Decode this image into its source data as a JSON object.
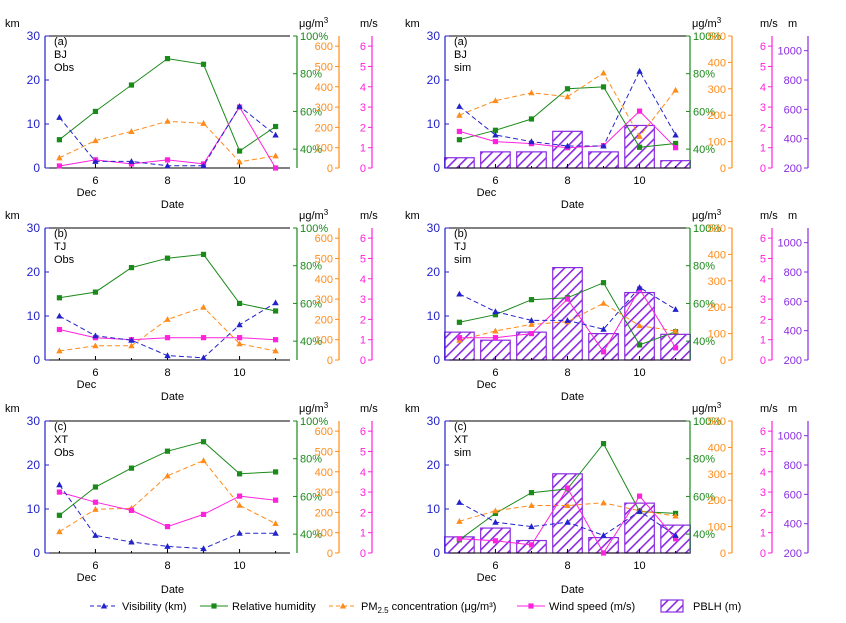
{
  "colors": {
    "visibility": "#2222cc",
    "rh": "#1a8a1a",
    "pm": "#ff8c1a",
    "wind": "#ff22dd",
    "pblh": "#8a2be2",
    "axis": "#000000"
  },
  "chart_data": [
    {
      "type": "line",
      "panel_label": "(a)",
      "site": "BJ",
      "source": "Obs",
      "xlabel": "Date",
      "x_month_label": "Dec",
      "x_ticks": [
        6,
        8,
        10
      ],
      "xlim": [
        4.6,
        11.4
      ],
      "x": [
        5,
        6,
        7,
        8,
        9,
        10,
        11
      ],
      "axes": {
        "visibility": {
          "unit": "km",
          "ylim": [
            0,
            30
          ],
          "ticks": [
            0,
            10,
            20,
            30
          ]
        },
        "rh": {
          "unit": "",
          "ylim": [
            30,
            100
          ],
          "ticks": [
            "40%",
            "60%",
            "80%",
            "100%"
          ]
        },
        "pm": {
          "unit": "μg/m³",
          "ylim": [
            0,
            650
          ],
          "ticks": [
            0,
            100,
            200,
            300,
            400,
            500,
            600
          ]
        },
        "wind": {
          "unit": "m/s",
          "ylim": [
            0,
            6.5
          ],
          "ticks": [
            0,
            1,
            2,
            3,
            4,
            5,
            6
          ]
        }
      },
      "series": [
        {
          "key": "visibility",
          "name": "Visibility (km)",
          "values": [
            11.5,
            1.5,
            1.5,
            0.5,
            0.5,
            14,
            7.5
          ]
        },
        {
          "key": "rh",
          "name": "Relative humidity",
          "values": [
            45,
            60,
            74,
            88,
            85,
            39,
            52
          ]
        },
        {
          "key": "pm",
          "name": "PM2.5 concentration",
          "values": [
            50,
            135,
            180,
            230,
            220,
            30,
            60
          ]
        },
        {
          "key": "wind",
          "name": "Wind speed",
          "values": [
            0.1,
            0.4,
            0.2,
            0.4,
            0.2,
            3.0,
            0
          ]
        }
      ]
    },
    {
      "type": "line",
      "panel_label": "(a)",
      "site": "BJ",
      "source": "sim",
      "xlabel": "Date",
      "x_month_label": "Dec",
      "x_ticks": [
        6,
        8,
        10
      ],
      "xlim": [
        4.6,
        11.4
      ],
      "x": [
        5,
        6,
        7,
        8,
        9,
        10,
        11
      ],
      "axes": {
        "visibility": {
          "unit": "km",
          "ylim": [
            0,
            30
          ],
          "ticks": [
            0,
            10,
            20,
            30
          ]
        },
        "rh": {
          "unit": "",
          "ylim": [
            30,
            100
          ],
          "ticks": [
            "40%",
            "60%",
            "80%",
            "100%"
          ]
        },
        "pm": {
          "unit": "μg/m³",
          "ylim": [
            0,
            500
          ],
          "ticks": [
            0,
            100,
            200,
            300,
            400,
            500
          ]
        },
        "wind": {
          "unit": "m/s",
          "ylim": [
            0,
            6.5
          ],
          "ticks": [
            0,
            1,
            2,
            3,
            4,
            5,
            6
          ]
        },
        "pblh": {
          "unit": "m",
          "ylim": [
            200,
            1100
          ],
          "ticks": [
            200,
            400,
            600,
            800,
            1000
          ]
        }
      },
      "series": [
        {
          "key": "visibility",
          "name": "Visibility (km)",
          "values": [
            14,
            7.5,
            6,
            5,
            5,
            22,
            7.5
          ]
        },
        {
          "key": "rh",
          "name": "Relative humidity",
          "values": [
            45,
            50,
            56,
            72,
            73,
            41,
            43
          ]
        },
        {
          "key": "pm",
          "name": "PM2.5 concentration",
          "values": [
            200,
            255,
            285,
            270,
            360,
            120,
            295
          ]
        },
        {
          "key": "wind",
          "name": "Wind speed",
          "values": [
            1.8,
            1.3,
            1.2,
            1.0,
            1.1,
            2.8,
            1.0
          ]
        },
        {
          "key": "pblh",
          "name": "PBLH (m)",
          "values": [
            270,
            310,
            310,
            450,
            310,
            490,
            250
          ]
        }
      ]
    },
    {
      "type": "line",
      "panel_label": "(b)",
      "site": "TJ",
      "source": "Obs",
      "xlabel": "Date",
      "x_month_label": "Dec",
      "x_ticks": [
        6,
        8,
        10
      ],
      "xlim": [
        4.6,
        11.4
      ],
      "x": [
        5,
        6,
        7,
        8,
        9,
        10,
        11
      ],
      "axes": {
        "visibility": {
          "unit": "km",
          "ylim": [
            0,
            30
          ],
          "ticks": [
            0,
            10,
            20,
            30
          ]
        },
        "rh": {
          "unit": "",
          "ylim": [
            30,
            100
          ],
          "ticks": [
            "40%",
            "60%",
            "80%",
            "100%"
          ]
        },
        "pm": {
          "unit": "μg/m³",
          "ylim": [
            0,
            650
          ],
          "ticks": [
            0,
            100,
            200,
            300,
            400,
            500,
            600
          ]
        },
        "wind": {
          "unit": "m/s",
          "ylim": [
            0,
            6.5
          ],
          "ticks": [
            0,
            1,
            2,
            3,
            4,
            5,
            6
          ]
        }
      },
      "series": [
        {
          "key": "visibility",
          "name": "Visibility (km)",
          "values": [
            10,
            5.5,
            4.5,
            1,
            0.5,
            8,
            13
          ]
        },
        {
          "key": "rh",
          "name": "Relative humidity",
          "values": [
            63,
            66,
            79,
            84,
            86,
            60,
            56
          ]
        },
        {
          "key": "pm",
          "name": "PM2.5 concentration",
          "values": [
            45,
            70,
            70,
            200,
            260,
            80,
            45
          ]
        },
        {
          "key": "wind",
          "name": "Wind speed",
          "values": [
            1.5,
            1.1,
            1.0,
            1.1,
            1.1,
            1.1,
            1.0
          ]
        }
      ]
    },
    {
      "type": "line",
      "panel_label": "(b)",
      "site": "TJ",
      "source": "sim",
      "xlabel": "Date",
      "x_month_label": "Dec",
      "x_ticks": [
        6,
        8,
        10
      ],
      "xlim": [
        4.6,
        11.4
      ],
      "x": [
        5,
        6,
        7,
        8,
        9,
        10,
        11
      ],
      "axes": {
        "visibility": {
          "unit": "km",
          "ylim": [
            0,
            30
          ],
          "ticks": [
            0,
            10,
            20,
            30
          ]
        },
        "rh": {
          "unit": "",
          "ylim": [
            30,
            100
          ],
          "ticks": [
            "40%",
            "60%",
            "80%",
            "100%"
          ]
        },
        "pm": {
          "unit": "μg/m³",
          "ylim": [
            0,
            500
          ],
          "ticks": [
            0,
            100,
            200,
            300,
            400,
            500
          ]
        },
        "wind": {
          "unit": "m/s",
          "ylim": [
            0,
            6.5
          ],
          "ticks": [
            0,
            1,
            2,
            3,
            4,
            5,
            6
          ]
        },
        "pblh": {
          "unit": "m",
          "ylim": [
            200,
            1100
          ],
          "ticks": [
            200,
            400,
            600,
            800,
            1000
          ]
        }
      },
      "series": [
        {
          "key": "visibility",
          "name": "Visibility (km)",
          "values": [
            15,
            11,
            9,
            9,
            7,
            16.5,
            11.5
          ]
        },
        {
          "key": "rh",
          "name": "Relative humidity",
          "values": [
            50,
            54,
            62,
            63,
            71,
            38,
            45
          ]
        },
        {
          "key": "pm",
          "name": "PM2.5 concentration",
          "values": [
            75,
            110,
            135,
            145,
            215,
            130,
            110
          ]
        },
        {
          "key": "wind",
          "name": "Wind speed",
          "values": [
            1.1,
            1.1,
            1.3,
            3.0,
            0.4,
            3.5,
            0.6
          ]
        },
        {
          "key": "pblh",
          "name": "PBLH (m)",
          "values": [
            390,
            335,
            390,
            830,
            380,
            660,
            375
          ]
        }
      ]
    },
    {
      "type": "line",
      "panel_label": "(c)",
      "site": "XT",
      "source": "Obs",
      "xlabel": "Date",
      "x_month_label": "Dec",
      "x_ticks": [
        6,
        8,
        10
      ],
      "xlim": [
        4.6,
        11.4
      ],
      "x": [
        5,
        6,
        7,
        8,
        9,
        10,
        11
      ],
      "axes": {
        "visibility": {
          "unit": "km",
          "ylim": [
            0,
            30
          ],
          "ticks": [
            0,
            10,
            20,
            30
          ]
        },
        "rh": {
          "unit": "",
          "ylim": [
            30,
            100
          ],
          "ticks": [
            "40%",
            "60%",
            "80%",
            "100%"
          ]
        },
        "pm": {
          "unit": "μg/m³",
          "ylim": [
            0,
            650
          ],
          "ticks": [
            0,
            100,
            200,
            300,
            400,
            500,
            600
          ]
        },
        "wind": {
          "unit": "m/s",
          "ylim": [
            0,
            6.5
          ],
          "ticks": [
            0,
            1,
            2,
            3,
            4,
            5,
            6
          ]
        }
      },
      "series": [
        {
          "key": "visibility",
          "name": "Visibility (km)",
          "values": [
            15.5,
            4,
            2.5,
            1.5,
            1,
            4.5,
            4.5
          ]
        },
        {
          "key": "rh",
          "name": "Relative humidity",
          "values": [
            50,
            65,
            75,
            84,
            89,
            72,
            73
          ]
        },
        {
          "key": "pm",
          "name": "PM2.5 concentration",
          "values": [
            105,
            215,
            220,
            380,
            455,
            235,
            145
          ]
        },
        {
          "key": "wind",
          "name": "Wind speed",
          "values": [
            3.0,
            2.5,
            2.1,
            1.3,
            1.9,
            2.8,
            2.6
          ]
        }
      ]
    },
    {
      "type": "line",
      "panel_label": "(c)",
      "site": "XT",
      "source": "sim",
      "xlabel": "Date",
      "x_month_label": "Dec",
      "x_ticks": [
        6,
        8,
        10
      ],
      "xlim": [
        4.6,
        11.4
      ],
      "x": [
        5,
        6,
        7,
        8,
        9,
        10,
        11
      ],
      "axes": {
        "visibility": {
          "unit": "km",
          "ylim": [
            0,
            30
          ],
          "ticks": [
            0,
            10,
            20,
            30
          ]
        },
        "rh": {
          "unit": "",
          "ylim": [
            30,
            100
          ],
          "ticks": [
            "40%",
            "60%",
            "80%",
            "100%"
          ]
        },
        "pm": {
          "unit": "μg/m³",
          "ylim": [
            0,
            500
          ],
          "ticks": [
            0,
            100,
            200,
            300,
            400,
            500
          ]
        },
        "wind": {
          "unit": "m/s",
          "ylim": [
            0,
            6.5
          ],
          "ticks": [
            0,
            1,
            2,
            3,
            4,
            5,
            6
          ]
        },
        "pblh": {
          "unit": "m",
          "ylim": [
            200,
            1100
          ],
          "ticks": [
            200,
            400,
            600,
            800,
            1000
          ]
        }
      },
      "series": [
        {
          "key": "visibility",
          "name": "Visibility (km)",
          "values": [
            11.5,
            7,
            6,
            7,
            4,
            9.5,
            4
          ]
        },
        {
          "key": "rh",
          "name": "Relative humidity",
          "values": [
            37,
            51,
            62,
            64,
            88,
            52,
            51
          ]
        },
        {
          "key": "pm",
          "name": "PM2.5 concentration",
          "values": [
            120,
            160,
            180,
            180,
            190,
            160,
            140
          ]
        },
        {
          "key": "wind",
          "name": "Wind speed",
          "values": [
            0.7,
            0.6,
            0.4,
            3.2,
            0,
            2.8,
            0.7
          ]
        },
        {
          "key": "pblh",
          "name": "PBLH (m)",
          "values": [
            310,
            370,
            285,
            740,
            305,
            540,
            390
          ]
        }
      ]
    }
  ],
  "legend": [
    {
      "key": "visibility",
      "name": "Visibility (km)"
    },
    {
      "key": "rh",
      "name": "Relative humidity"
    },
    {
      "key": "pm",
      "name": "PM",
      "subscript": "2.5",
      "suffix": " concentration (μg/m³)"
    },
    {
      "key": "wind",
      "name": "Wind speed (m/s)"
    },
    {
      "key": "pblh",
      "name": "PBLH (m)"
    }
  ]
}
